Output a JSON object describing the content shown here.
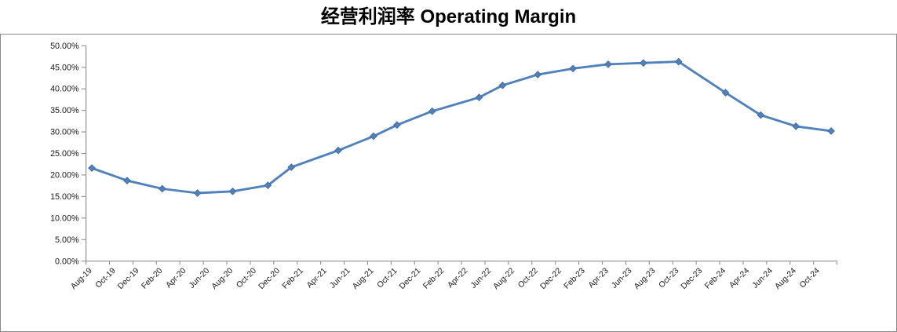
{
  "title": "经营利润率 Operating Margin",
  "colors": {
    "series_line": "#4F81BD",
    "marker_fill": "#4F81BD",
    "marker_edge": "#44699D",
    "axis_line": "#8E8E8E",
    "chart_border": "#8A8A8A",
    "label_text": "#1A1A1A",
    "title_text": "#000000"
  },
  "chart_data": {
    "type": "line",
    "title": "经营利润率 Operating Margin",
    "grid": false,
    "legend": "none",
    "y_axis": {
      "format": "0.00%",
      "min_pct": 0,
      "max_pct": 50,
      "tick_step_pct": 5,
      "ticks": [
        {
          "label": "50.00%",
          "value_pct": 50
        },
        {
          "label": "45.00%",
          "value_pct": 45
        },
        {
          "label": "40.00%",
          "value_pct": 40
        },
        {
          "label": "35.00%",
          "value_pct": 35
        },
        {
          "label": "30.00%",
          "value_pct": 30
        },
        {
          "label": "25.00%",
          "value_pct": 25
        },
        {
          "label": "20.00%",
          "value_pct": 20
        },
        {
          "label": "15.00%",
          "value_pct": 15
        },
        {
          "label": "10.00%",
          "value_pct": 10
        },
        {
          "label": "5.00%",
          "value_pct": 5
        },
        {
          "label": "0.00%",
          "value_pct": 0
        }
      ]
    },
    "x_axis": {
      "label_interval_months": 2,
      "tick_labels": [
        "Aug-19",
        "Oct-19",
        "Dec-19",
        "Feb-20",
        "Apr-20",
        "Jun-20",
        "Aug-20",
        "Oct-20",
        "Dec-20",
        "Feb-21",
        "Apr-21",
        "Jun-21",
        "Aug-21",
        "Oct-21",
        "Dec-21",
        "Feb-22",
        "Apr-22",
        "Jun-22",
        "Aug-22",
        "Oct-22",
        "Dec-22",
        "Feb-23",
        "Apr-23",
        "Jun-23",
        "Aug-23",
        "Oct-23",
        "Dec-23",
        "Feb-24",
        "Apr-24",
        "Jun-24",
        "Aug-24",
        "Oct-24"
      ]
    },
    "series": [
      {
        "name": "Operating Margin",
        "marker": "diamond",
        "color": "#4F81BD",
        "points": [
          {
            "date": "Aug-19",
            "month_offset": 0,
            "value_pct": 21.6
          },
          {
            "date": "Nov-19",
            "month_offset": 3,
            "value_pct": 18.7
          },
          {
            "date": "Feb-20",
            "month_offset": 6,
            "value_pct": 16.8
          },
          {
            "date": "May-20",
            "month_offset": 9,
            "value_pct": 15.8
          },
          {
            "date": "Aug-20",
            "month_offset": 12,
            "value_pct": 16.2
          },
          {
            "date": "Nov-20",
            "month_offset": 15,
            "value_pct": 17.6
          },
          {
            "date": "Jan-21",
            "month_offset": 17,
            "value_pct": 21.8
          },
          {
            "date": "May-21",
            "month_offset": 21,
            "value_pct": 25.7
          },
          {
            "date": "Aug-21",
            "month_offset": 24,
            "value_pct": 29.0
          },
          {
            "date": "Oct-21",
            "month_offset": 26,
            "value_pct": 31.6
          },
          {
            "date": "Jan-22",
            "month_offset": 29,
            "value_pct": 34.8
          },
          {
            "date": "May-22",
            "month_offset": 33,
            "value_pct": 38.0
          },
          {
            "date": "Jul-22",
            "month_offset": 35,
            "value_pct": 40.8
          },
          {
            "date": "Oct-22",
            "month_offset": 38,
            "value_pct": 43.3
          },
          {
            "date": "Jan-23",
            "month_offset": 41,
            "value_pct": 44.7
          },
          {
            "date": "Apr-23",
            "month_offset": 44,
            "value_pct": 45.7
          },
          {
            "date": "Jul-23",
            "month_offset": 47,
            "value_pct": 46.0
          },
          {
            "date": "Oct-23",
            "month_offset": 50,
            "value_pct": 46.3
          },
          {
            "date": "Feb-24",
            "month_offset": 54,
            "value_pct": 39.1
          },
          {
            "date": "May-24",
            "month_offset": 57,
            "value_pct": 33.9
          },
          {
            "date": "Aug-24",
            "month_offset": 60,
            "value_pct": 31.3
          },
          {
            "date": "Nov-24",
            "month_offset": 63,
            "value_pct": 30.2
          }
        ]
      }
    ]
  }
}
